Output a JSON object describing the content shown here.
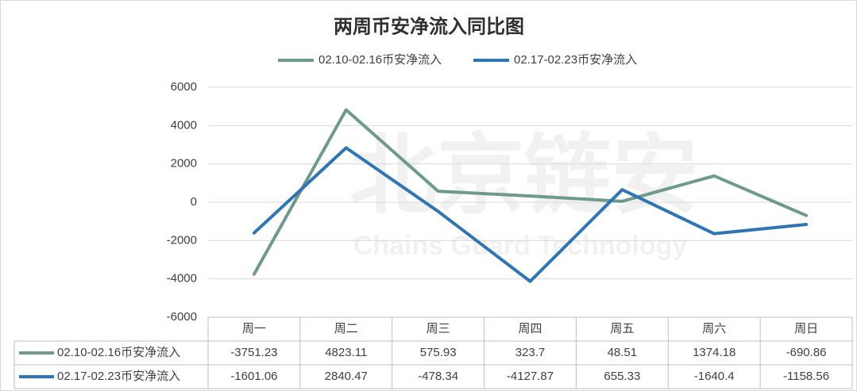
{
  "chart_data": {
    "type": "line",
    "title": "两周币安净流入同比图",
    "categories": [
      "周一",
      "周二",
      "周三",
      "周四",
      "周五",
      "周六",
      "周日"
    ],
    "series": [
      {
        "name": "02.10-02.16币安净流入",
        "color": "#6e9a8c",
        "values": [
          -3751.23,
          4823.11,
          575.93,
          323.7,
          48.51,
          1374.18,
          -690.86
        ]
      },
      {
        "name": "02.17-02.23币安净流入",
        "color": "#2e75b6",
        "values": [
          -1601.06,
          2840.47,
          -478.34,
          -4127.87,
          655.33,
          -1640.4,
          -1158.56
        ]
      }
    ],
    "ylim": [
      -6000,
      6000
    ],
    "yticks": [
      -6000,
      -4000,
      -2000,
      0,
      2000,
      4000,
      6000
    ],
    "grid": true,
    "legend": "top",
    "data_table": true,
    "watermark": [
      "北京链安",
      "Chains Guard Technology"
    ]
  }
}
